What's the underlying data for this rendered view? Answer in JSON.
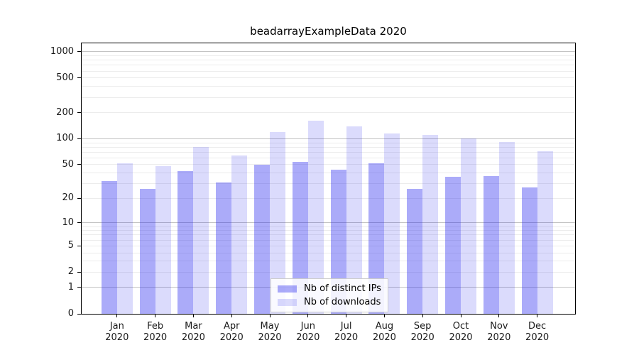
{
  "figure": {
    "title": "beadarrayExampleData 2020"
  },
  "chart_data": {
    "type": "bar",
    "title": "beadarrayExampleData 2020",
    "xlabel": "",
    "ylabel": "",
    "categories": [
      "Jan 2020",
      "Feb 2020",
      "Mar 2020",
      "Apr 2020",
      "May 2020",
      "Jun 2020",
      "Jul 2020",
      "Aug 2020",
      "Sep 2020",
      "Oct 2020",
      "Nov 2020",
      "Dec 2020"
    ],
    "series": [
      {
        "name": "Nb of distinct IPs",
        "color": "#2222EE",
        "alpha": 0.38,
        "values": [
          32,
          26,
          42,
          31,
          50,
          54,
          44,
          52,
          26,
          36,
          37,
          27
        ]
      },
      {
        "name": "Nb of downloads",
        "color": "#2222EE",
        "alpha": 0.16,
        "values": [
          52,
          48,
          80,
          64,
          120,
          163,
          140,
          115,
          110,
          100,
          92,
          72
        ]
      }
    ],
    "y_scale": "log10(1+y)",
    "ylim": [
      0,
      1292
    ],
    "y_tick_values": [
      0,
      1,
      2,
      5,
      10,
      20,
      50,
      100,
      200,
      500,
      1000
    ],
    "y_major_gridlines": [
      1,
      10,
      100,
      1000
    ],
    "y_minor_gridlines": [
      2,
      3,
      4,
      5,
      6,
      7,
      8,
      9,
      20,
      30,
      40,
      50,
      60,
      70,
      80,
      90,
      200,
      300,
      400,
      500,
      600,
      700,
      800,
      900
    ],
    "grid": "on",
    "legend": {
      "position": "lower center",
      "entries": [
        "Nb of distinct IPs",
        "Nb of downloads"
      ]
    },
    "colors": {
      "major_gridline": "#C3C3C3",
      "minor_gridline": "#ECECEC",
      "axis_frame": "#000000",
      "tick_text": "#1A1A1A",
      "legend_border": "#CCCCCC"
    }
  }
}
